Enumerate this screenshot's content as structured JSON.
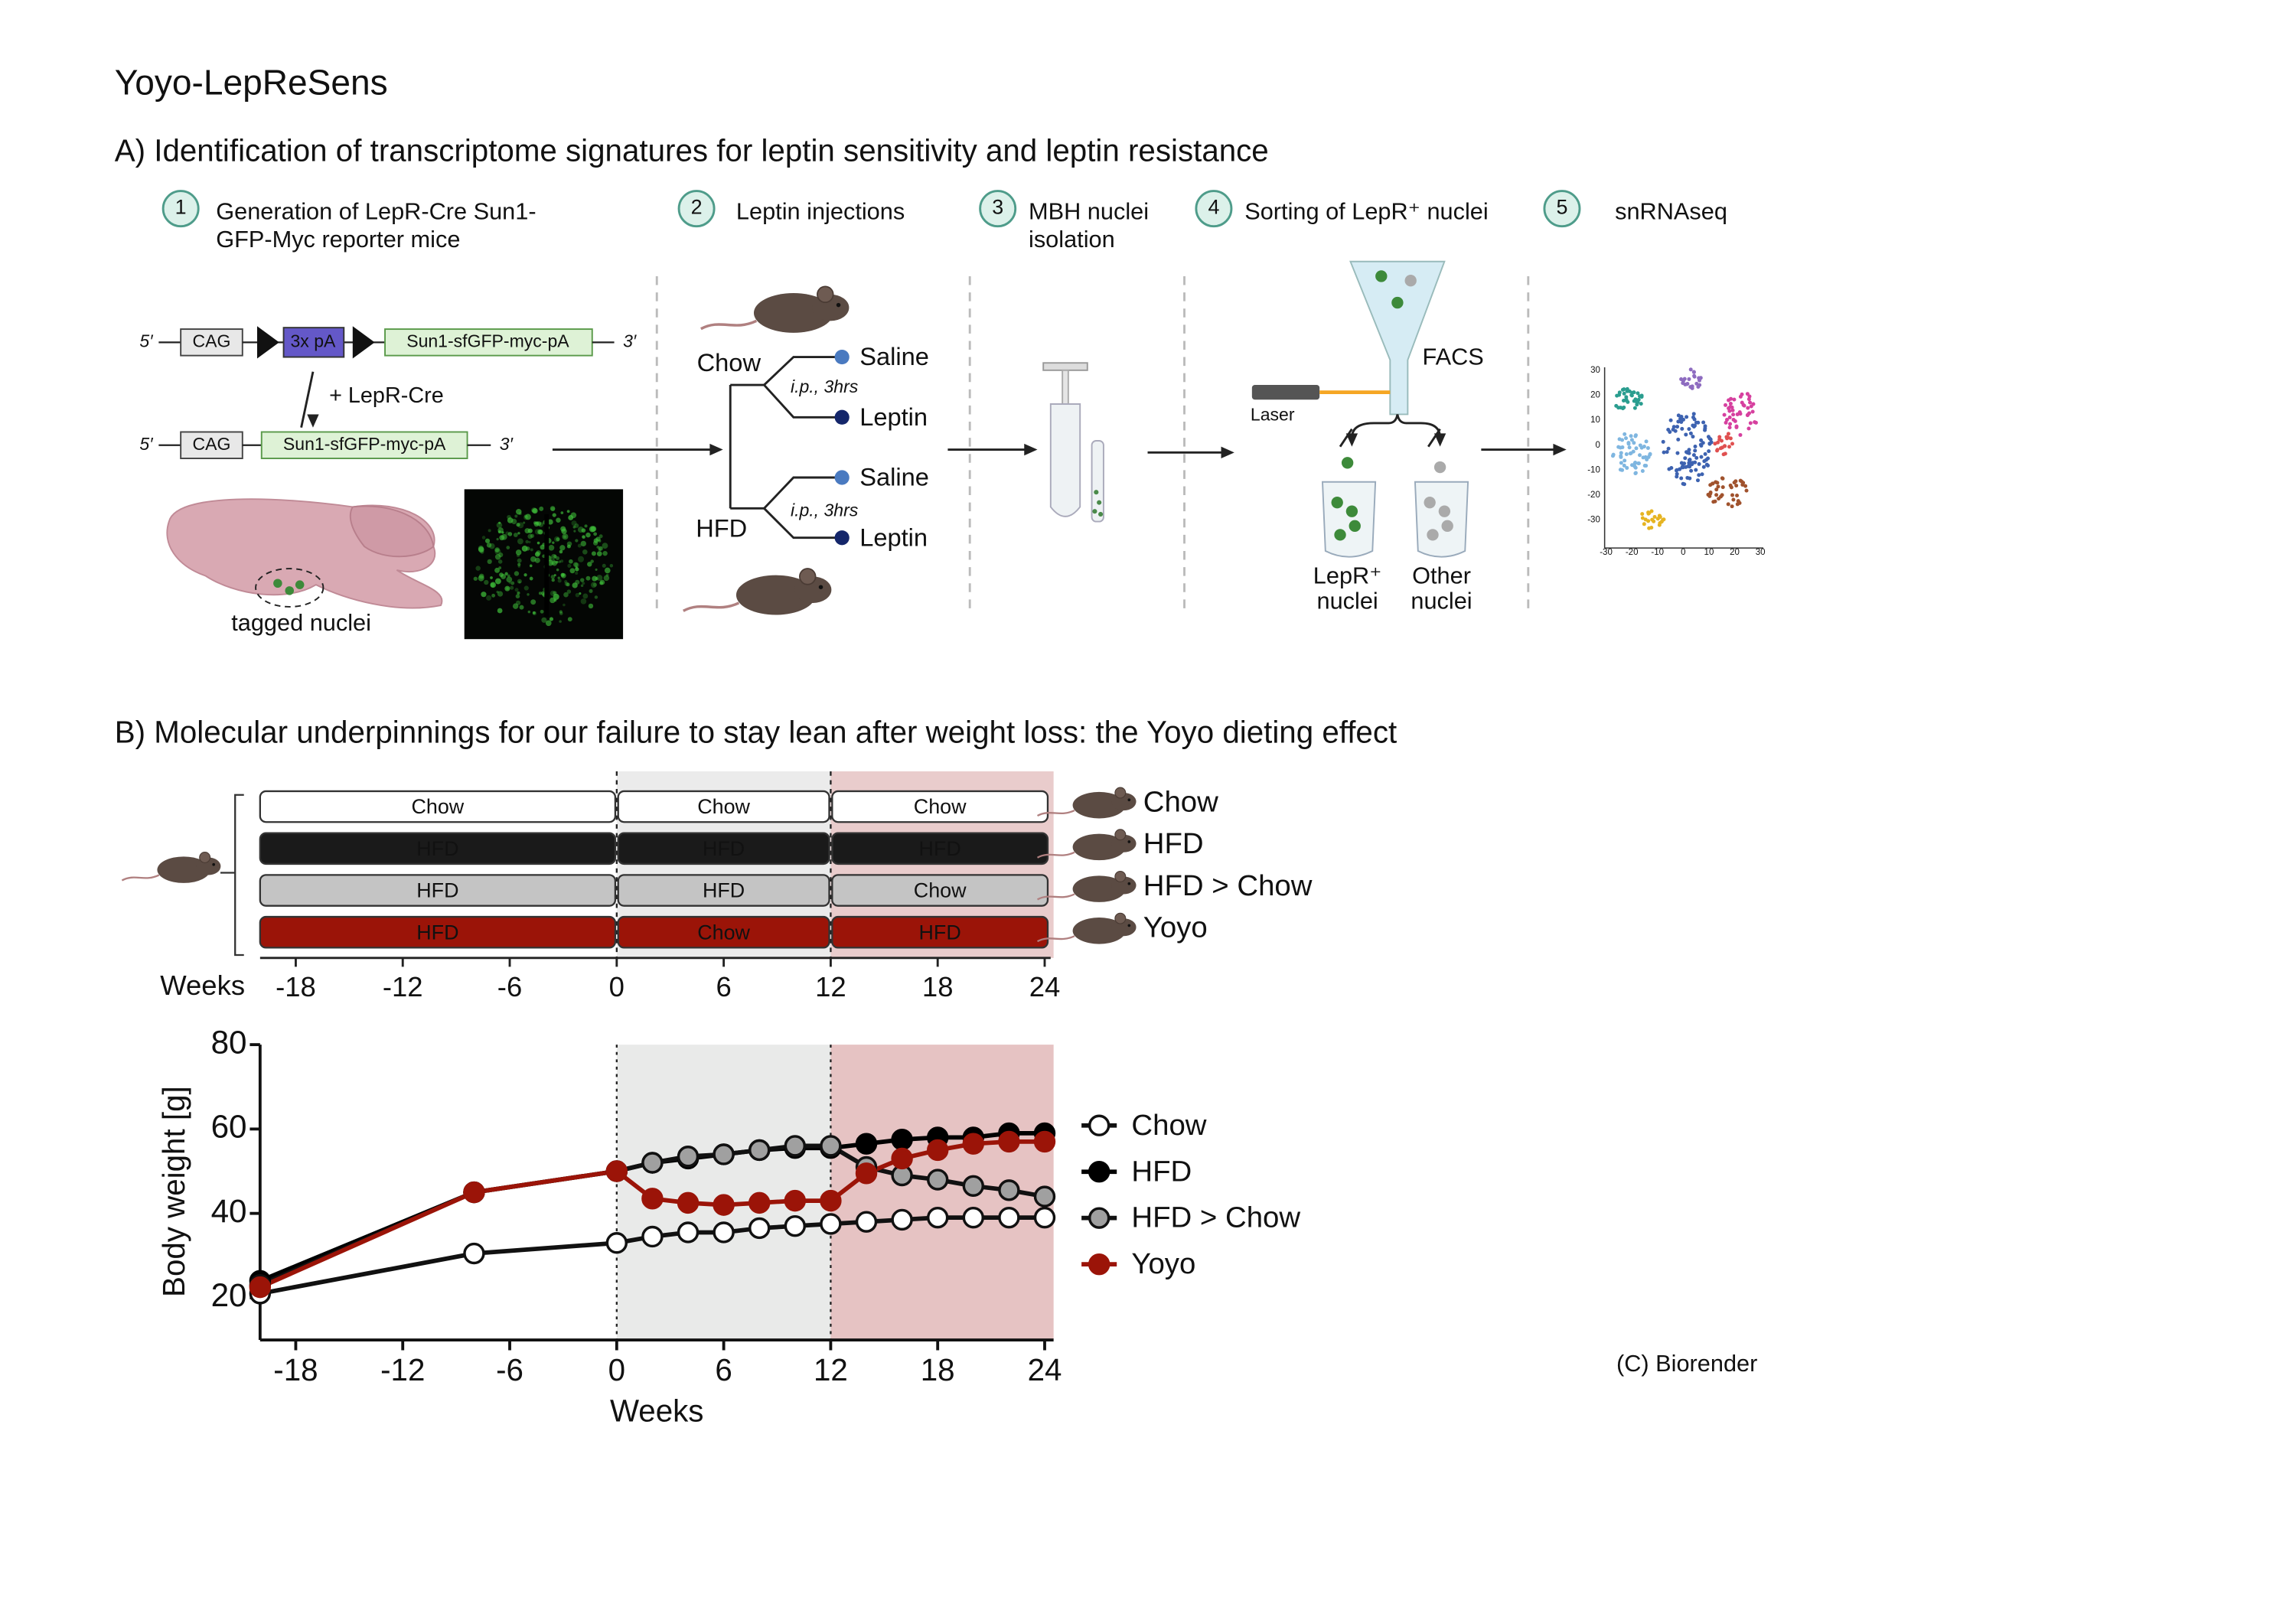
{
  "header": {
    "title": "Yoyo-LepReSens"
  },
  "panel_a": {
    "title": "A) Identification of transcriptome signatures for leptin sensitivity and leptin resistance",
    "steps": [
      {
        "number": "1",
        "label": [
          "Generation of LepR-Cre Sun1-",
          "GFP-Myc reporter mice"
        ]
      },
      {
        "number": "2",
        "label": [
          "Leptin injections"
        ]
      },
      {
        "number": "3",
        "label": [
          "MBH nuclei",
          "isolation"
        ]
      },
      {
        "number": "4",
        "label": [
          "Sorting of LepR⁺ nuclei"
        ]
      },
      {
        "number": "5",
        "label": [
          "snRNAseq"
        ]
      }
    ],
    "construct": {
      "top": [
        "5′",
        "CAG",
        "3x pA",
        "Sun1-sfGFP-myc-pA",
        "3′"
      ],
      "cross": "+ LepR-Cre",
      "bottom": [
        "5′",
        "CAG",
        "Sun1-sfGFP-myc-pA",
        "3′"
      ],
      "brain_label": "tagged nuclei"
    },
    "injections": {
      "diets": [
        "Chow",
        "HFD"
      ],
      "route": [
        "i.p., 3hrs",
        "i.p., 3hrs"
      ],
      "treatments": [
        "Saline",
        "Leptin",
        "Saline",
        "Leptin"
      ]
    },
    "sorting": {
      "instrument": "FACS",
      "laser": "Laser",
      "tubes": [
        [
          "LepR⁺",
          "nuclei"
        ],
        [
          "Other",
          "nuclei"
        ]
      ]
    },
    "umap": {
      "yticks": [
        "30",
        "20",
        "10",
        "0",
        "-10",
        "-20",
        "-30"
      ],
      "xticks": [
        "-30",
        "-20",
        "-10",
        "0",
        "10",
        "20",
        "30"
      ]
    }
  },
  "panel_b": {
    "title": "B) Molecular underpinnings for our failure to stay lean after weight loss: the Yoyo dieting effect",
    "timeline": {
      "rows": [
        {
          "name": "Chow",
          "segments": [
            {
              "label": "Chow",
              "fill": "#ffffff",
              "text": "#111111"
            },
            {
              "label": "Chow",
              "fill": "#ffffff",
              "text": "#111111"
            },
            {
              "label": "Chow",
              "fill": "#ffffff",
              "text": "#111111"
            }
          ]
        },
        {
          "name": "HFD",
          "segments": [
            {
              "label": "HFD",
              "fill": "#1a1a1a",
              "text": "#ffffff"
            },
            {
              "label": "HFD",
              "fill": "#1a1a1a",
              "text": "#ffffff"
            },
            {
              "label": "HFD",
              "fill": "#1a1a1a",
              "text": "#ffffff"
            }
          ]
        },
        {
          "name": "HFD > Chow",
          "segments": [
            {
              "label": "HFD",
              "fill": "#c4c4c4",
              "text": "#ffffff"
            },
            {
              "label": "HFD",
              "fill": "#c4c4c4",
              "text": "#ffffff"
            },
            {
              "label": "Chow",
              "fill": "#c4c4c4",
              "text": "#222222"
            }
          ]
        },
        {
          "name": "Yoyo",
          "segments": [
            {
              "label": "HFD",
              "fill": "#9b1408",
              "text": "#ffffff"
            },
            {
              "label": "Chow",
              "fill": "#9b1408",
              "text": "#3a0500"
            },
            {
              "label": "HFD",
              "fill": "#9b1408",
              "text": "#ffffff"
            }
          ]
        }
      ],
      "weeks_label": "Weeks",
      "weeks": [
        "-18",
        "-12",
        "-6",
        "0",
        "6",
        "12",
        "18",
        "24"
      ]
    }
  },
  "chart_data": {
    "type": "line",
    "x_label": "Weeks",
    "y_label": "Body weight [g]",
    "x": [
      -20,
      -8,
      0,
      2,
      4,
      6,
      8,
      10,
      12,
      14,
      16,
      18,
      20,
      22,
      24
    ],
    "series": [
      {
        "name": "Chow",
        "color": "#ffffff",
        "line_color": "#111111",
        "values": [
          21,
          30.5,
          33,
          34.5,
          35.5,
          35.5,
          36.5,
          37,
          37.5,
          38,
          38.5,
          39,
          39,
          39,
          39
        ]
      },
      {
        "name": "HFD",
        "color": "#000000",
        "line_color": "#000000",
        "values": [
          24,
          45,
          50,
          52,
          53,
          54,
          55,
          55.5,
          55.5,
          56.5,
          57.5,
          58,
          58,
          59,
          59
        ]
      },
      {
        "name": "HFD > Chow",
        "color": "#a0a0a0",
        "line_color": "#111111",
        "values": [
          23,
          45,
          50,
          52,
          53.5,
          54,
          55,
          56,
          56,
          51,
          49,
          48,
          46.5,
          45.5,
          44
        ]
      },
      {
        "name": "Yoyo",
        "color": "#9b1408",
        "line_color": "#9b1408",
        "values": [
          22.5,
          45,
          50,
          43.5,
          42.5,
          42,
          42.5,
          43,
          43,
          49.5,
          53,
          55,
          56.5,
          57,
          57
        ]
      }
    ],
    "xlim": [
      -20,
      24.5
    ],
    "ylim": [
      10,
      80
    ],
    "xticks": [
      -18,
      -12,
      -6,
      0,
      6,
      12,
      18,
      24
    ],
    "yticks": [
      20,
      40,
      60,
      80
    ],
    "grid": false,
    "legend": "right"
  },
  "credit": "(C) Biorender"
}
